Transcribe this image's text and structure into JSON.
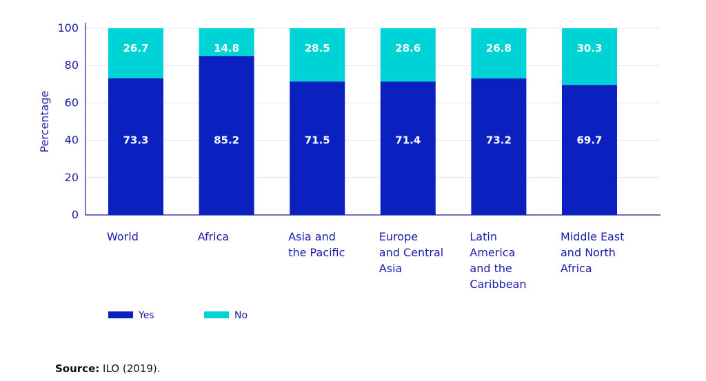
{
  "chart_data": {
    "type": "bar",
    "stacked": true,
    "categories": [
      [
        "World"
      ],
      [
        "Africa"
      ],
      [
        "Asia and",
        "the Pacific"
      ],
      [
        "Europe",
        "and Central",
        "Asia"
      ],
      [
        "Latin",
        "America",
        "and the",
        "Caribbean"
      ],
      [
        "Middle East",
        "and North",
        "Africa"
      ]
    ],
    "series": [
      {
        "name": "Yes",
        "color": "#0a21c0",
        "values": [
          73.3,
          85.2,
          71.5,
          71.4,
          73.2,
          69.7
        ]
      },
      {
        "name": "No",
        "color": "#00d3d6",
        "values": [
          26.7,
          14.8,
          28.5,
          28.6,
          26.8,
          30.3
        ]
      }
    ],
    "ylabel": "Percentage",
    "ylim": [
      0,
      100
    ],
    "yticks": [
      0,
      20,
      40,
      60,
      80,
      100
    ],
    "grid": true,
    "legend_position": "bottom-left"
  },
  "source": {
    "label": "Source:",
    "text": "ILO (2019)."
  }
}
